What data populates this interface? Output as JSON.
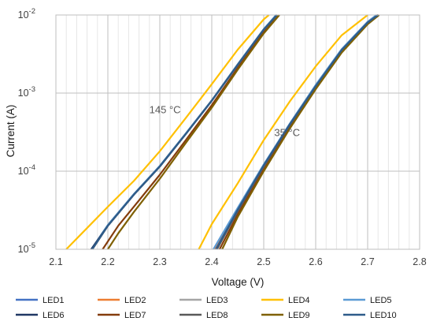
{
  "chart_data": {
    "type": "line",
    "title": "",
    "xlabel": "Voltage (V)",
    "ylabel": "Current (A)",
    "xlim": [
      2.1,
      2.8
    ],
    "ylim": [
      1e-05,
      0.01
    ],
    "yscale": "log",
    "grid": true,
    "legend_position": "bottom",
    "x_ticks": [
      "2.1",
      "2.2",
      "2.3",
      "2.4",
      "2.5",
      "2.6",
      "2.7",
      "2.8"
    ],
    "y_ticks": [
      {
        "value": 1e-05,
        "mant": "10",
        "exp": "-5"
      },
      {
        "value": 0.0001,
        "mant": "10",
        "exp": "-4"
      },
      {
        "value": 0.001,
        "mant": "10",
        "exp": "-3"
      },
      {
        "value": 0.01,
        "mant": "10",
        "exp": "-2"
      }
    ],
    "annotations": [
      {
        "text": "145 °C",
        "x": 2.31,
        "y": 0.00055
      },
      {
        "text": "35 °C",
        "x": 2.545,
        "y": 0.00028
      }
    ],
    "series": [
      {
        "name": "LED1",
        "color": "#4472C4",
        "curves": [
          [
            [
              2.17,
              1e-05
            ],
            [
              2.2,
              2e-05
            ],
            [
              2.25,
              5e-05
            ],
            [
              2.3,
              0.000115
            ],
            [
              2.35,
              0.0003
            ],
            [
              2.4,
              0.0008
            ],
            [
              2.45,
              0.0023
            ],
            [
              2.5,
              0.0065
            ],
            [
              2.525,
              0.01
            ]
          ],
          [
            [
              2.405,
              1e-05
            ],
            [
              2.45,
              3.3e-05
            ],
            [
              2.5,
              0.00012
            ],
            [
              2.55,
              0.0004
            ],
            [
              2.6,
              0.00125
            ],
            [
              2.65,
              0.0036
            ],
            [
              2.7,
              0.0081
            ],
            [
              2.718,
              0.01
            ]
          ]
        ]
      },
      {
        "name": "LED2",
        "color": "#ED7D31",
        "curves": [
          [
            [
              2.17,
              1e-05
            ],
            [
              2.2,
              2e-05
            ],
            [
              2.25,
              5e-05
            ],
            [
              2.3,
              0.000115
            ],
            [
              2.35,
              0.0003
            ],
            [
              2.4,
              0.0008
            ],
            [
              2.45,
              0.0023
            ],
            [
              2.5,
              0.0065
            ],
            [
              2.525,
              0.01
            ]
          ],
          [
            [
              2.405,
              1e-05
            ],
            [
              2.45,
              3.3e-05
            ],
            [
              2.5,
              0.00012
            ],
            [
              2.55,
              0.0004
            ],
            [
              2.6,
              0.00125
            ],
            [
              2.65,
              0.0036
            ],
            [
              2.7,
              0.0081
            ],
            [
              2.718,
              0.01
            ]
          ]
        ]
      },
      {
        "name": "LED3",
        "color": "#A5A5A5",
        "curves": [
          [
            [
              2.17,
              1e-05
            ],
            [
              2.2,
              2e-05
            ],
            [
              2.25,
              5e-05
            ],
            [
              2.3,
              0.000115
            ],
            [
              2.35,
              0.0003
            ],
            [
              2.4,
              0.0008
            ],
            [
              2.45,
              0.0023
            ],
            [
              2.5,
              0.0065
            ],
            [
              2.525,
              0.01
            ]
          ],
          [
            [
              2.41,
              1e-05
            ],
            [
              2.45,
              3.1e-05
            ],
            [
              2.5,
              0.000115
            ],
            [
              2.55,
              0.00039
            ],
            [
              2.6,
              0.0012
            ],
            [
              2.65,
              0.0035
            ],
            [
              2.7,
              0.008
            ],
            [
              2.72,
              0.01
            ]
          ]
        ]
      },
      {
        "name": "LED4",
        "color": "#FFC000",
        "curves": [
          [
            [
              2.12,
              1e-05
            ],
            [
              2.15,
              1.6e-05
            ],
            [
              2.2,
              3.5e-05
            ],
            [
              2.25,
              7.5e-05
            ],
            [
              2.3,
              0.00018
            ],
            [
              2.35,
              0.00048
            ],
            [
              2.4,
              0.0013
            ],
            [
              2.45,
              0.0036
            ],
            [
              2.5,
              0.0088
            ],
            [
              2.51,
              0.01
            ]
          ],
          [
            [
              2.375,
              1e-05
            ],
            [
              2.4,
              2.1e-05
            ],
            [
              2.45,
              7e-05
            ],
            [
              2.5,
              0.00025
            ],
            [
              2.55,
              0.00078
            ],
            [
              2.6,
              0.0022
            ],
            [
              2.65,
              0.0055
            ],
            [
              2.7,
              0.01
            ]
          ]
        ]
      },
      {
        "name": "LED5",
        "color": "#5B9BD5",
        "curves": [
          [
            [
              2.168,
              1e-05
            ],
            [
              2.2,
              2.05e-05
            ],
            [
              2.25,
              5.1e-05
            ],
            [
              2.3,
              0.000117
            ],
            [
              2.35,
              0.000305
            ],
            [
              2.4,
              0.00081
            ],
            [
              2.45,
              0.00235
            ],
            [
              2.5,
              0.0066
            ],
            [
              2.524,
              0.01
            ]
          ],
          [
            [
              2.403,
              1e-05
            ],
            [
              2.45,
              3.4e-05
            ],
            [
              2.5,
              0.000122
            ],
            [
              2.55,
              0.000405
            ],
            [
              2.6,
              0.00127
            ],
            [
              2.65,
              0.00365
            ],
            [
              2.7,
              0.0082
            ],
            [
              2.717,
              0.01
            ]
          ]
        ]
      },
      {
        "name": "LED6",
        "color": "#203864",
        "curves": [
          [
            [
              2.168,
              1e-05
            ],
            [
              2.2,
              2e-05
            ],
            [
              2.25,
              5e-05
            ],
            [
              2.3,
              0.000115
            ],
            [
              2.35,
              0.0003
            ],
            [
              2.4,
              0.0008
            ],
            [
              2.45,
              0.0023
            ],
            [
              2.5,
              0.0065
            ],
            [
              2.526,
              0.01
            ]
          ],
          [
            [
              2.41,
              1e-05
            ],
            [
              2.45,
              3.2e-05
            ],
            [
              2.5,
              0.000118
            ],
            [
              2.55,
              0.000395
            ],
            [
              2.6,
              0.00122
            ],
            [
              2.65,
              0.00355
            ],
            [
              2.7,
              0.008
            ],
            [
              2.72,
              0.01
            ]
          ]
        ]
      },
      {
        "name": "LED7",
        "color": "#843C0C",
        "curves": [
          [
            [
              2.19,
              1e-05
            ],
            [
              2.22,
              2e-05
            ],
            [
              2.25,
              3.5e-05
            ],
            [
              2.3,
              9e-05
            ],
            [
              2.35,
              0.00025
            ],
            [
              2.4,
              0.0007
            ],
            [
              2.45,
              0.0021
            ],
            [
              2.5,
              0.006
            ],
            [
              2.53,
              0.01
            ]
          ],
          [
            [
              2.415,
              1e-05
            ],
            [
              2.45,
              2.8e-05
            ],
            [
              2.5,
              0.000105
            ],
            [
              2.55,
              0.00036
            ],
            [
              2.6,
              0.00115
            ],
            [
              2.65,
              0.0034
            ],
            [
              2.7,
              0.0078
            ],
            [
              2.722,
              0.01
            ]
          ]
        ]
      },
      {
        "name": "LED8",
        "color": "#595959",
        "curves": [
          [
            [
              2.17,
              1e-05
            ],
            [
              2.2,
              2e-05
            ],
            [
              2.25,
              5e-05
            ],
            [
              2.3,
              0.000115
            ],
            [
              2.35,
              0.0003
            ],
            [
              2.4,
              0.0008
            ],
            [
              2.45,
              0.0023
            ],
            [
              2.5,
              0.0065
            ],
            [
              2.526,
              0.01
            ]
          ],
          [
            [
              2.41,
              1e-05
            ],
            [
              2.45,
              3.1e-05
            ],
            [
              2.5,
              0.000116
            ],
            [
              2.55,
              0.00039
            ],
            [
              2.6,
              0.0012
            ],
            [
              2.65,
              0.0035
            ],
            [
              2.7,
              0.008
            ],
            [
              2.72,
              0.01
            ]
          ]
        ]
      },
      {
        "name": "LED9",
        "color": "#7F6000",
        "curves": [
          [
            [
              2.2,
              1e-05
            ],
            [
              2.22,
              1.6e-05
            ],
            [
              2.25,
              3e-05
            ],
            [
              2.3,
              8e-05
            ],
            [
              2.35,
              0.00023
            ],
            [
              2.4,
              0.00065
            ],
            [
              2.45,
              0.002
            ],
            [
              2.5,
              0.0058
            ],
            [
              2.53,
              0.01
            ]
          ],
          [
            [
              2.42,
              1e-05
            ],
            [
              2.45,
              2.6e-05
            ],
            [
              2.5,
              0.0001
            ],
            [
              2.55,
              0.00035
            ],
            [
              2.6,
              0.00112
            ],
            [
              2.65,
              0.0033
            ],
            [
              2.7,
              0.0076
            ],
            [
              2.722,
              0.01
            ]
          ]
        ]
      },
      {
        "name": "LED10",
        "color": "#2E5C8A",
        "curves": [
          [
            [
              2.17,
              1e-05
            ],
            [
              2.2,
              2e-05
            ],
            [
              2.25,
              5e-05
            ],
            [
              2.3,
              0.000115
            ],
            [
              2.35,
              0.0003
            ],
            [
              2.4,
              0.0008
            ],
            [
              2.45,
              0.0023
            ],
            [
              2.5,
              0.0065
            ],
            [
              2.525,
              0.01
            ]
          ],
          [
            [
              2.408,
              1e-05
            ],
            [
              2.45,
              3.2e-05
            ],
            [
              2.5,
              0.000118
            ],
            [
              2.55,
              0.000395
            ],
            [
              2.6,
              0.00123
            ],
            [
              2.65,
              0.00355
            ],
            [
              2.7,
              0.008
            ],
            [
              2.72,
              0.01
            ]
          ]
        ]
      }
    ]
  }
}
